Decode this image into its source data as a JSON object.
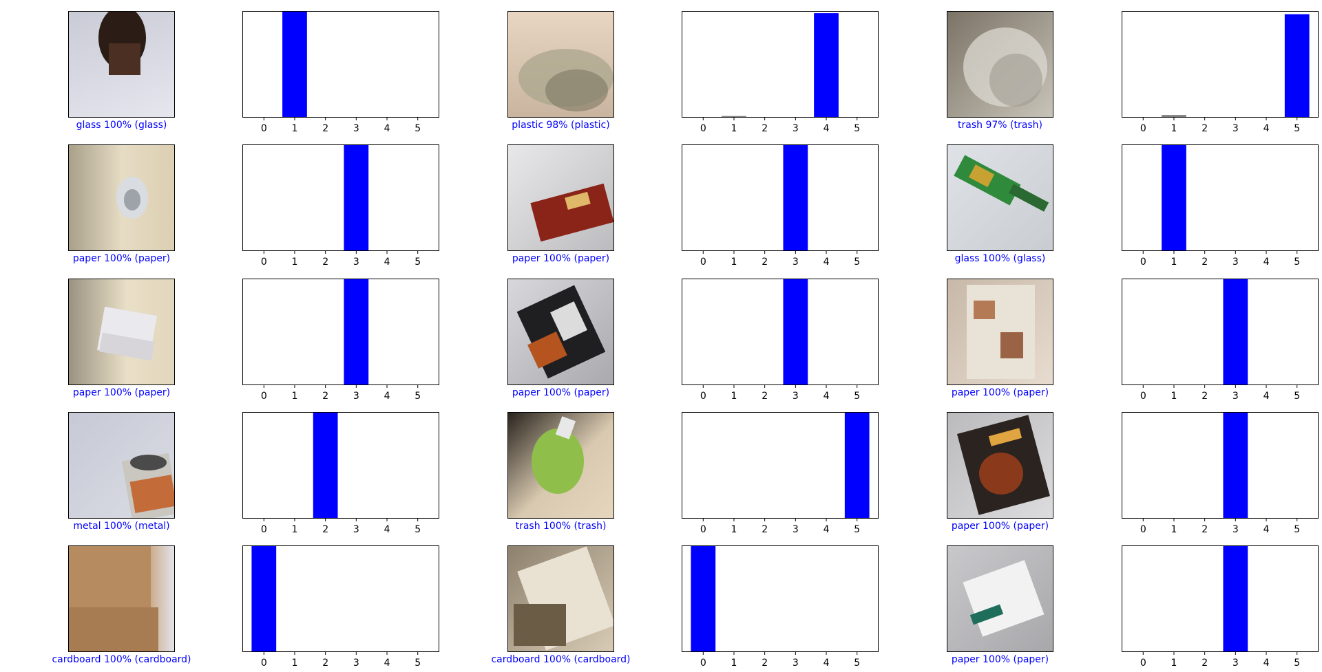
{
  "chart_data": {
    "type": "bar",
    "categories": [
      "0",
      "1",
      "2",
      "3",
      "4",
      "5"
    ],
    "ylim": [
      0,
      1
    ],
    "grid": false,
    "colors": {
      "predicted": "#0000ff",
      "other": "#808080",
      "label_correct": "#0000ff"
    },
    "panels": [
      {
        "label": "glass 100% (glass)",
        "values": [
          0,
          1.0,
          0,
          0,
          0,
          0
        ],
        "predicted": 1,
        "scene": "glass-bottle-photo"
      },
      {
        "label": "plastic 98% (plastic)",
        "values": [
          0,
          0.015,
          0,
          0,
          0.98,
          0
        ],
        "predicted": 4,
        "scene": "plastic-wrap-photo"
      },
      {
        "label": "trash 97% (trash)",
        "values": [
          0,
          0.025,
          0,
          0,
          0,
          0.97
        ],
        "predicted": 5,
        "scene": "plastic-film-photo"
      },
      {
        "label": "paper 100% (paper)",
        "values": [
          0,
          0,
          0,
          1.0,
          0,
          0
        ],
        "predicted": 3,
        "scene": "crumpled-paper-photo"
      },
      {
        "label": "paper 100% (paper)",
        "values": [
          0,
          0,
          0,
          1.0,
          0,
          0
        ],
        "predicted": 3,
        "scene": "food-box-photo"
      },
      {
        "label": "glass 100% (glass)",
        "values": [
          0,
          1.0,
          0,
          0,
          0,
          0
        ],
        "predicted": 1,
        "scene": "green-bottle-photo"
      },
      {
        "label": "paper 100% (paper)",
        "values": [
          0,
          0,
          0,
          1.0,
          0,
          0
        ],
        "predicted": 3,
        "scene": "folded-paper-photo"
      },
      {
        "label": "paper 100% (paper)",
        "values": [
          0,
          0,
          0,
          1.0,
          0,
          0
        ],
        "predicted": 3,
        "scene": "packaging-photo"
      },
      {
        "label": "paper 100% (paper)",
        "values": [
          0,
          0,
          0,
          1.0,
          0,
          0
        ],
        "predicted": 3,
        "scene": "magazine-photo"
      },
      {
        "label": "metal 100% (metal)",
        "values": [
          0,
          0.005,
          1.0,
          0,
          0,
          0
        ],
        "predicted": 2,
        "scene": "metal-can-photo"
      },
      {
        "label": "trash 100% (trash)",
        "values": [
          0,
          0,
          0,
          0,
          0,
          1.0
        ],
        "predicted": 5,
        "scene": "pouch-photo"
      },
      {
        "label": "paper 100% (paper)",
        "values": [
          0,
          0,
          0,
          1.0,
          0,
          0
        ],
        "predicted": 3,
        "scene": "food-magazine-photo"
      },
      {
        "label": "cardboard 100% (cardboard)",
        "values": [
          1.0,
          0,
          0,
          0,
          0,
          0
        ],
        "predicted": 0,
        "scene": "cardboard-photo"
      },
      {
        "label": "cardboard 100% (cardboard)",
        "values": [
          1.0,
          0,
          0,
          0,
          0,
          0
        ],
        "predicted": 0,
        "scene": "cardboard-piece-photo"
      },
      {
        "label": "paper 100% (paper)",
        "values": [
          0,
          0,
          0,
          1.0,
          0,
          0
        ],
        "predicted": 3,
        "scene": "paper-bag-photo"
      }
    ]
  }
}
